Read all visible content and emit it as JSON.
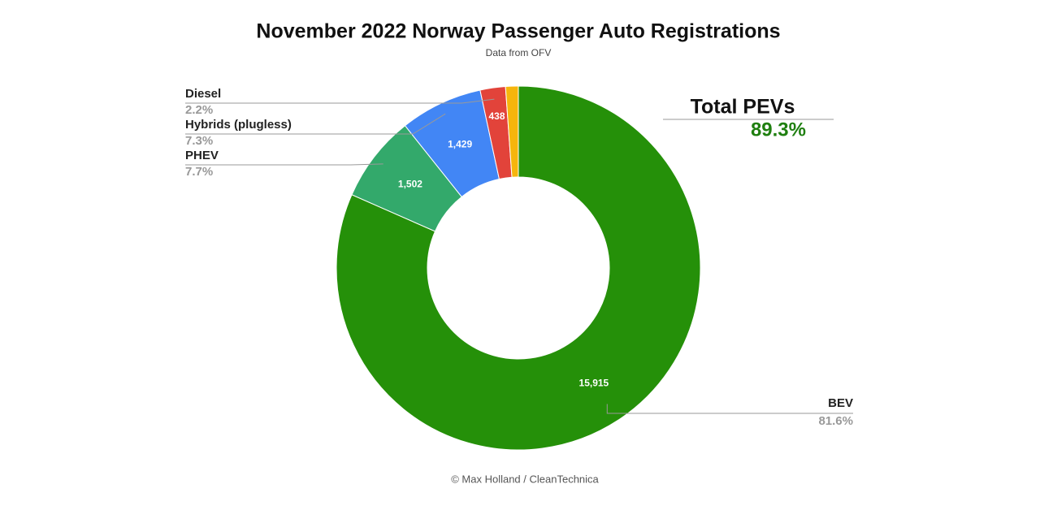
{
  "chart_data": {
    "type": "donut",
    "title": "November 2022 Norway Passenger Auto Registrations",
    "subtitle": "Data from OFV",
    "footer": "© Max Holland / CleanTechnica",
    "categories": [
      "BEV",
      "PHEV",
      "Hybrids (plugless)",
      "Diesel",
      null
    ],
    "values": [
      15915,
      1502,
      1429,
      438,
      220
    ],
    "value_labels": [
      "15,915",
      "1,502",
      "1,429",
      "438",
      null
    ],
    "percentages": [
      81.6,
      7.7,
      7.3,
      2.2,
      null
    ],
    "percentage_labels": [
      "81.6%",
      "7.7%",
      "7.3%",
      "2.2%",
      null
    ],
    "colors": [
      "#259009",
      "#33a96b",
      "#4286f5",
      "#e2433a",
      "#f6b50c"
    ],
    "annotation": {
      "title": "Total PEVs",
      "value": 89.3,
      "label": "89.3%"
    }
  }
}
